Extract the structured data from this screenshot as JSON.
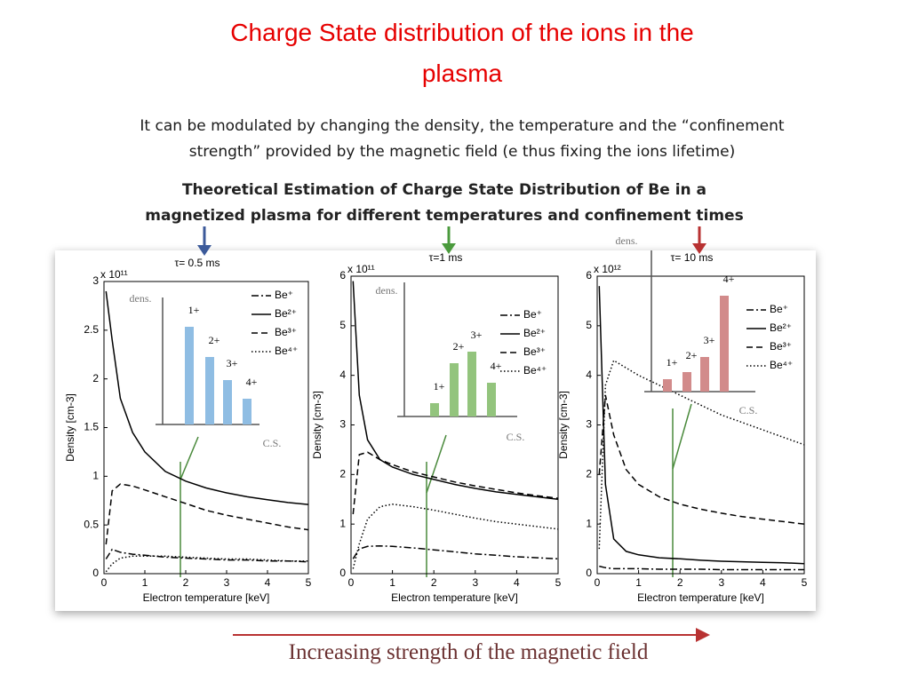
{
  "slide": {
    "title_lines": [
      "Charge State distribution of the ions in the",
      "plasma"
    ],
    "subtitle_lines": [
      "It can be modulated by changing the density, the temperature and the “confinement",
      "strength” provided by the magnetic field (e thus fixing the ions lifetime)"
    ],
    "heading_lines": [
      "Theoretical Estimation of Charge State Distribution of Be in a",
      "magnetized plasma for different temperatures and confinement times"
    ],
    "footer": "Increasing strength of the magnetic field"
  },
  "chart_data": [
    {
      "type": "line",
      "title": "τ= 0.5 ms",
      "scale_label": "x 10¹¹",
      "xlabel": "Electron temperature [keV]",
      "ylabel": "Density [cm-3]",
      "x": [
        0.05,
        0.2,
        0.4,
        0.7,
        1,
        1.5,
        2,
        2.5,
        3,
        3.5,
        4,
        4.5,
        5
      ],
      "xlim": [
        0,
        5
      ],
      "xticks": [
        0,
        1,
        2,
        3,
        4,
        5
      ],
      "ylim": [
        0,
        3
      ],
      "yticks": [
        0,
        0.5,
        1,
        1.5,
        2,
        2.5,
        3
      ],
      "series": [
        {
          "name": "Be⁺",
          "color": "#000000",
          "style": "dashdot",
          "values": [
            0.15,
            0.25,
            0.22,
            0.2,
            0.19,
            0.17,
            0.16,
            0.15,
            0.14,
            0.14,
            0.13,
            0.13,
            0.12
          ]
        },
        {
          "name": "Be²⁺",
          "color": "#000000",
          "style": "solid",
          "values": [
            2.9,
            2.4,
            1.8,
            1.45,
            1.25,
            1.05,
            0.95,
            0.88,
            0.83,
            0.79,
            0.76,
            0.73,
            0.71
          ]
        },
        {
          "name": "Be³⁺",
          "color": "#000000",
          "style": "dashed",
          "values": [
            0.3,
            0.85,
            0.92,
            0.9,
            0.86,
            0.79,
            0.72,
            0.65,
            0.6,
            0.56,
            0.52,
            0.48,
            0.45
          ]
        },
        {
          "name": "Be⁴⁺",
          "color": "#000000",
          "style": "dotted",
          "values": [
            0.02,
            0.1,
            0.16,
            0.18,
            0.18,
            0.18,
            0.17,
            0.16,
            0.15,
            0.15,
            0.14,
            0.13,
            0.13
          ]
        }
      ],
      "inset": {
        "type": "bar",
        "ylabel": "dens.",
        "xlabel": "C.S.",
        "color": "#8fbde3",
        "categories": [
          "1+",
          "2+",
          "3+",
          "4+"
        ],
        "values": [
          110,
          76,
          50,
          29
        ]
      }
    },
    {
      "type": "line",
      "title": "τ=1 ms",
      "scale_label": "x 10¹¹",
      "xlabel": "Electron temperature [keV]",
      "ylabel": "Density [cm-3]",
      "x": [
        0.05,
        0.2,
        0.4,
        0.7,
        1,
        1.5,
        2,
        2.5,
        3,
        3.5,
        4,
        4.5,
        5
      ],
      "xlim": [
        0,
        5
      ],
      "xticks": [
        0,
        1,
        2,
        3,
        4,
        5
      ],
      "ylim": [
        0,
        6
      ],
      "yticks": [
        0,
        1,
        2,
        3,
        4,
        5,
        6
      ],
      "series": [
        {
          "name": "Be⁺",
          "color": "#000000",
          "style": "dashdot",
          "values": [
            0.3,
            0.5,
            0.55,
            0.56,
            0.55,
            0.52,
            0.48,
            0.44,
            0.4,
            0.37,
            0.34,
            0.32,
            0.3
          ]
        },
        {
          "name": "Be²⁺",
          "color": "#000000",
          "style": "solid",
          "values": [
            5.9,
            3.6,
            2.7,
            2.3,
            2.15,
            2.0,
            1.9,
            1.8,
            1.72,
            1.65,
            1.6,
            1.55,
            1.5
          ]
        },
        {
          "name": "Be³⁺",
          "color": "#000000",
          "style": "dashed",
          "values": [
            1.2,
            2.4,
            2.45,
            2.3,
            2.2,
            2.05,
            1.95,
            1.85,
            1.77,
            1.7,
            1.63,
            1.57,
            1.52
          ]
        },
        {
          "name": "Be⁴⁺",
          "color": "#000000",
          "style": "dotted",
          "values": [
            0.1,
            0.6,
            1.1,
            1.35,
            1.4,
            1.35,
            1.28,
            1.2,
            1.12,
            1.05,
            1.0,
            0.95,
            0.9
          ]
        }
      ],
      "inset": {
        "type": "bar",
        "ylabel": "dens.",
        "xlabel": "C.S.",
        "color": "#93c47d",
        "categories": [
          "1+",
          "2+",
          "3+",
          "4+"
        ],
        "values": [
          15,
          60,
          73,
          38
        ]
      }
    },
    {
      "type": "line",
      "title": "τ= 10 ms",
      "scale_label": "x 10¹²",
      "xlabel": "Electron temperature [keV]",
      "ylabel": "Density [cm-3]",
      "x": [
        0.05,
        0.2,
        0.4,
        0.7,
        1,
        1.5,
        2,
        2.5,
        3,
        3.5,
        4,
        4.5,
        5
      ],
      "xlim": [
        0,
        5
      ],
      "xticks": [
        0,
        1,
        2,
        3,
        4,
        5
      ],
      "ylim": [
        0,
        6
      ],
      "yticks": [
        0,
        1,
        2,
        3,
        4,
        5,
        6
      ],
      "series": [
        {
          "name": "Be⁺",
          "color": "#000000",
          "style": "dashdot",
          "values": [
            0.15,
            0.12,
            0.1,
            0.1,
            0.1,
            0.09,
            0.09,
            0.09,
            0.08,
            0.08,
            0.08,
            0.08,
            0.08
          ]
        },
        {
          "name": "Be²⁺",
          "color": "#000000",
          "style": "solid",
          "values": [
            5.8,
            1.8,
            0.7,
            0.45,
            0.38,
            0.32,
            0.3,
            0.27,
            0.25,
            0.24,
            0.23,
            0.22,
            0.2
          ]
        },
        {
          "name": "Be³⁺",
          "color": "#000000",
          "style": "dashed",
          "values": [
            2.0,
            3.6,
            2.8,
            2.1,
            1.8,
            1.55,
            1.4,
            1.3,
            1.22,
            1.15,
            1.1,
            1.05,
            1.0
          ]
        },
        {
          "name": "Be⁴⁺",
          "color": "#000000",
          "style": "dotted",
          "values": [
            0.5,
            3.8,
            4.3,
            4.15,
            4.0,
            3.8,
            3.6,
            3.4,
            3.2,
            3.05,
            2.9,
            2.75,
            2.6
          ]
        }
      ],
      "inset": {
        "type": "bar",
        "ylabel": "dens.",
        "xlabel": "C.S.",
        "color": "#d28b8b",
        "categories": [
          "1+",
          "2+",
          "3+",
          "4+"
        ],
        "values": [
          14,
          22,
          39,
          108
        ]
      }
    }
  ]
}
